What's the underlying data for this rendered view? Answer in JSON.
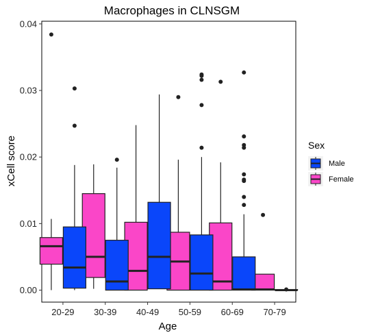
{
  "chart_data": {
    "type": "boxplot",
    "title": "Macrophages in CLNSGM",
    "xlabel": "Age",
    "ylabel": "xCell score",
    "categories": [
      "20-29",
      "30-39",
      "40-49",
      "50-59",
      "60-69",
      "70-79"
    ],
    "yticks": [
      "0.00",
      "0.01",
      "0.02",
      "0.03",
      "0.04"
    ],
    "ylim": [
      -0.0018,
      0.0404
    ],
    "grid": false,
    "legend": {
      "title": "Sex",
      "placement": "right",
      "entries": [
        {
          "name": "Male",
          "color": "#0a46fa"
        },
        {
          "name": "Female",
          "color": "#fa46c8"
        }
      ]
    },
    "series": [
      {
        "name": "Female",
        "color": "#fa46c8",
        "boxes": [
          {
            "category": "20-29",
            "whisker_low": 0.0,
            "q1": 0.0039,
            "median": 0.0066,
            "q3": 0.0079,
            "whisker_high": 0.0107,
            "outliers": [
              0.0384
            ]
          },
          {
            "category": "30-39",
            "whisker_low": 0.0002,
            "q1": 0.0019,
            "median": 0.005,
            "q3": 0.0145,
            "whisker_high": 0.0189,
            "outliers": []
          },
          {
            "category": "40-49",
            "whisker_low": 0.0,
            "q1": 0.0,
            "median": 0.0029,
            "q3": 0.0102,
            "whisker_high": 0.0248,
            "outliers": []
          },
          {
            "category": "50-59",
            "whisker_low": 0.0,
            "q1": 0.0,
            "median": 0.0043,
            "q3": 0.0087,
            "whisker_high": 0.0196,
            "outliers": [
              0.029
            ]
          },
          {
            "category": "60-69",
            "whisker_low": 0.0,
            "q1": 0.0,
            "median": 0.0013,
            "q3": 0.0101,
            "whisker_high": 0.0192,
            "outliers": [
              0.0313
            ]
          },
          {
            "category": "70-79",
            "whisker_low": 0.0,
            "q1": 0.0,
            "median": 0.0001,
            "q3": 0.0024,
            "whisker_high": 0.0024,
            "outliers": [
              0.0113
            ]
          }
        ]
      },
      {
        "name": "Male",
        "color": "#0a46fa",
        "boxes": [
          {
            "category": "20-29",
            "whisker_low": 0.0,
            "q1": 0.0003,
            "median": 0.0034,
            "q3": 0.0095,
            "whisker_high": 0.0188,
            "outliers": [
              0.0247,
              0.0303
            ]
          },
          {
            "category": "30-39",
            "whisker_low": 0.0,
            "q1": 0.0,
            "median": 0.0013,
            "q3": 0.0075,
            "whisker_high": 0.0184,
            "outliers": [
              0.0196
            ]
          },
          {
            "category": "40-49",
            "whisker_low": 0.0002,
            "q1": 0.0002,
            "median": 0.005,
            "q3": 0.0132,
            "whisker_high": 0.0294,
            "outliers": []
          },
          {
            "category": "50-59",
            "whisker_low": 0.0,
            "q1": 0.0,
            "median": 0.0025,
            "q3": 0.0083,
            "whisker_high": 0.02,
            "outliers": [
              0.0214,
              0.0278,
              0.0316,
              0.0322,
              0.0324
            ]
          },
          {
            "category": "60-69",
            "whisker_low": 0.0,
            "q1": 0.0,
            "median": 0.0001,
            "q3": 0.005,
            "whisker_high": 0.0114,
            "outliers": [
              0.0128,
              0.014,
              0.0164,
              0.0166,
              0.0174,
              0.0214,
              0.0218,
              0.0231,
              0.0327
            ]
          },
          {
            "category": "70-79",
            "whisker_low": 0.0,
            "q1": 0.0,
            "median": 0.0,
            "q3": 0.0001,
            "whisker_high": 0.0001,
            "outliers": [
              0.0001
            ]
          }
        ]
      }
    ]
  }
}
